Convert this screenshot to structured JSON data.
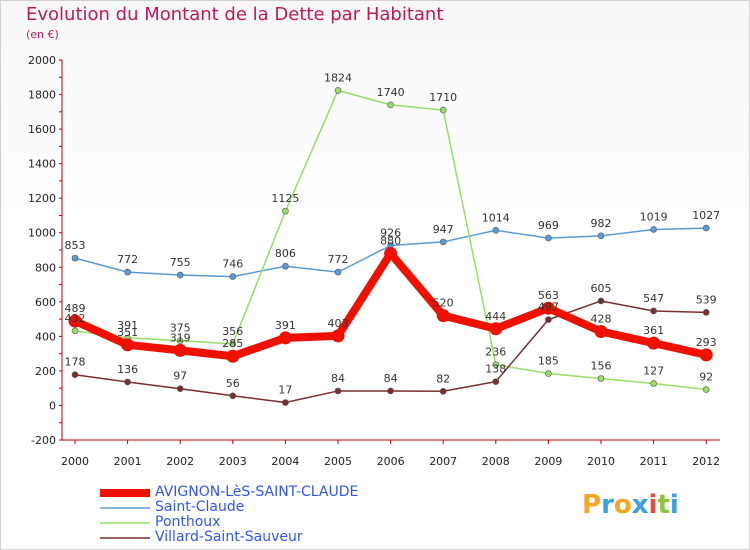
{
  "title": "Evolution du Montant de la Dette par Habitant",
  "subtitle": "(en €)",
  "logo": "Proxiti",
  "chart_data": {
    "type": "line",
    "title": "Evolution du Montant de la Dette par Habitant",
    "subtitle": "(en €)",
    "xlabel": "",
    "ylabel": "",
    "categories": [
      "2000",
      "2001",
      "2002",
      "2003",
      "2004",
      "2005",
      "2006",
      "2007",
      "2008",
      "2009",
      "2010",
      "2011",
      "2012"
    ],
    "y_ticks": [
      "-200",
      "0",
      "200",
      "400",
      "600",
      "800",
      "1000",
      "1200",
      "1400",
      "1600",
      "1800",
      "2000"
    ],
    "ylim": [
      -200,
      2000
    ],
    "grid": false,
    "legend_position": "bottom-left",
    "series": [
      {
        "name": "AVIGNON-LèS-SAINT-CLAUDE",
        "color": "#ee1100",
        "values": [
          489,
          351,
          319,
          285,
          391,
          403,
          880,
          520,
          444,
          563,
          428,
          361,
          293
        ]
      },
      {
        "name": "Saint-Claude",
        "color": "#5b9bd5",
        "values": [
          853,
          772,
          755,
          746,
          806,
          772,
          926,
          947,
          1014,
          969,
          982,
          1019,
          1027
        ]
      },
      {
        "name": "Ponthoux",
        "color": "#99dd66",
        "values": [
          432,
          391,
          375,
          356,
          1125,
          1824,
          1740,
          1710,
          236,
          185,
          156,
          127,
          92
        ]
      },
      {
        "name": "Villard-Saint-Sauveur",
        "color": "#7a2e2e",
        "values": [
          178,
          136,
          97,
          56,
          17,
          84,
          84,
          82,
          138,
          497,
          605,
          547,
          539
        ]
      }
    ]
  }
}
